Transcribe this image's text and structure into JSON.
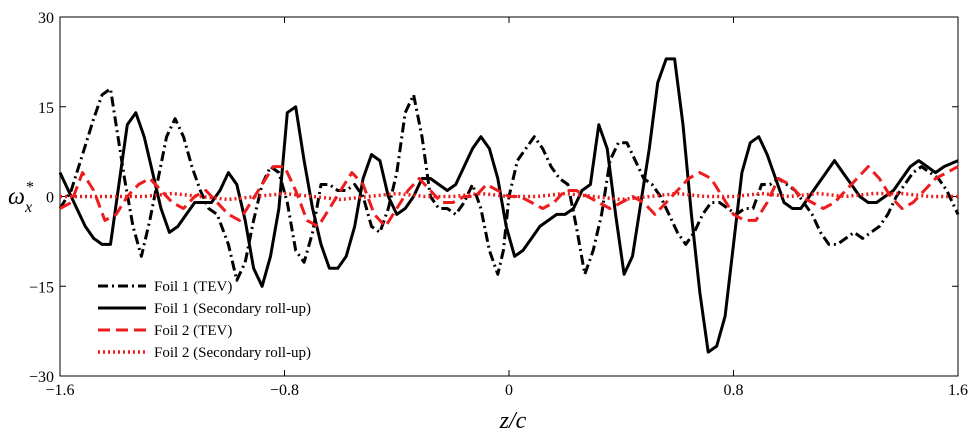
{
  "chart_data": {
    "type": "line",
    "title": "",
    "xlabel": "z/c",
    "ylabel_main": "ω",
    "ylabel_sub": "x",
    "ylabel_sup": "*",
    "xlim": [
      -1.6,
      1.6
    ],
    "ylim": [
      -30,
      30
    ],
    "xticks": [
      -1.6,
      -0.8,
      0,
      0.8,
      1.6
    ],
    "xtick_labels": [
      "−1.6",
      "−0.8",
      "0",
      "0.8",
      "1.6"
    ],
    "yticks": [
      -30,
      -15,
      0,
      15,
      30
    ],
    "ytick_labels": [
      "−30",
      "−15",
      "0",
      "15",
      "30"
    ],
    "grid": false,
    "legend_position": "bottom-left",
    "series": [
      {
        "name": "Foil 1 (TEV)",
        "color": "#000000",
        "style": "dashdot",
        "x": [
          -1.6,
          -1.56,
          -1.52,
          -1.48,
          -1.45,
          -1.42,
          -1.4,
          -1.37,
          -1.34,
          -1.31,
          -1.28,
          -1.25,
          -1.22,
          -1.19,
          -1.16,
          -1.13,
          -1.1,
          -1.07,
          -1.04,
          -1.0,
          -0.97,
          -0.94,
          -0.91,
          -0.88,
          -0.85,
          -0.82,
          -0.79,
          -0.76,
          -0.73,
          -0.7,
          -0.67,
          -0.64,
          -0.61,
          -0.58,
          -0.55,
          -0.52,
          -0.49,
          -0.46,
          -0.43,
          -0.4,
          -0.37,
          -0.34,
          -0.31,
          -0.28,
          -0.25,
          -0.22,
          -0.19,
          -0.16,
          -0.13,
          -0.1,
          -0.07,
          -0.04,
          -0.02,
          0.0,
          0.03,
          0.06,
          0.09,
          0.12,
          0.15,
          0.18,
          0.21,
          0.24,
          0.27,
          0.3,
          0.33,
          0.36,
          0.39,
          0.42,
          0.45,
          0.48,
          0.51,
          0.54,
          0.57,
          0.6,
          0.63,
          0.66,
          0.69,
          0.72,
          0.75,
          0.78,
          0.81,
          0.84,
          0.87,
          0.9,
          0.93,
          0.96,
          0.99,
          1.02,
          1.05,
          1.08,
          1.11,
          1.14,
          1.17,
          1.2,
          1.23,
          1.26,
          1.29,
          1.32,
          1.35,
          1.38,
          1.41,
          1.44,
          1.47,
          1.5,
          1.53,
          1.56,
          1.6
        ],
        "y": [
          -2,
          1,
          7,
          13,
          17,
          18,
          12,
          3,
          -5,
          -10,
          -4,
          3,
          10,
          13,
          10,
          5,
          1,
          -2,
          -3,
          -8,
          -14,
          -11,
          -4,
          2,
          5,
          4,
          -1,
          -9,
          -11,
          -6,
          2,
          2,
          1,
          1,
          2,
          0,
          -5,
          -6,
          -2,
          4,
          14,
          17,
          10,
          0,
          -2,
          -2,
          -3,
          -1,
          2,
          -2,
          -9,
          -13,
          -9,
          0,
          6,
          8,
          10,
          8,
          5,
          3,
          2,
          -5,
          -13,
          -9,
          -3,
          6,
          9,
          9,
          6,
          3,
          2,
          0,
          -3,
          -6,
          -8,
          -6,
          -3,
          -1,
          -1,
          -2,
          -3,
          -2,
          -2,
          2,
          2,
          3,
          2,
          1,
          -1,
          -3,
          -6,
          -8,
          -8,
          -7,
          -6,
          -7,
          -6,
          -5,
          -3,
          0,
          2,
          4,
          5,
          4,
          3,
          1,
          -3
        ],
        "x_override": true
      },
      {
        "name": "Foil 1 (Secondary roll-up)",
        "color": "#000000",
        "style": "solid",
        "x": [
          -1.6,
          -1.57,
          -1.54,
          -1.51,
          -1.48,
          -1.45,
          -1.42,
          -1.39,
          -1.36,
          -1.33,
          -1.3,
          -1.27,
          -1.24,
          -1.21,
          -1.18,
          -1.15,
          -1.12,
          -1.09,
          -1.06,
          -1.03,
          -1.0,
          -0.97,
          -0.94,
          -0.91,
          -0.88,
          -0.85,
          -0.82,
          -0.79,
          -0.76,
          -0.73,
          -0.7,
          -0.67,
          -0.64,
          -0.61,
          -0.58,
          -0.55,
          -0.52,
          -0.49,
          -0.46,
          -0.43,
          -0.4,
          -0.37,
          -0.34,
          -0.31,
          -0.28,
          -0.25,
          -0.22,
          -0.19,
          -0.16,
          -0.13,
          -0.1,
          -0.07,
          -0.04,
          -0.01,
          0.02,
          0.05,
          0.08,
          0.11,
          0.14,
          0.17,
          0.2,
          0.23,
          0.26,
          0.29,
          0.32,
          0.35,
          0.38,
          0.41,
          0.44,
          0.47,
          0.5,
          0.53,
          0.56,
          0.59,
          0.62,
          0.65,
          0.68,
          0.71,
          0.74,
          0.77,
          0.8,
          0.83,
          0.86,
          0.89,
          0.92,
          0.95,
          0.98,
          1.01,
          1.04,
          1.07,
          1.1,
          1.13,
          1.16,
          1.19,
          1.22,
          1.25,
          1.28,
          1.31,
          1.34,
          1.37,
          1.4,
          1.43,
          1.46,
          1.49,
          1.52,
          1.55,
          1.6
        ],
        "y": [
          4,
          1,
          -2,
          -5,
          -7,
          -8,
          -8,
          2,
          12,
          14,
          10,
          4,
          -2,
          -6,
          -5,
          -3,
          -1,
          -1,
          -1,
          1,
          4,
          2,
          -4,
          -12,
          -15,
          -10,
          -2,
          14,
          15,
          6,
          -2,
          -8,
          -12,
          -12,
          -10,
          -5,
          3,
          7,
          6,
          0,
          -3,
          -2,
          0,
          3,
          3,
          2,
          1,
          2,
          5,
          8,
          10,
          8,
          3,
          -5,
          -10,
          -9,
          -7,
          -5,
          -4,
          -3,
          -3,
          -2,
          1,
          2,
          12,
          8,
          -3,
          -13,
          -10,
          -1,
          8,
          19,
          23,
          23,
          12,
          -3,
          -16,
          -26,
          -25,
          -20,
          -8,
          4,
          9,
          10,
          7,
          3,
          -1,
          -2,
          -2,
          0,
          2,
          4,
          6,
          4,
          2,
          0,
          -1,
          -1,
          0,
          1,
          3,
          5,
          6,
          5,
          4,
          5,
          6
        ],
        "x_override": true
      },
      {
        "name": "Foil 2 (TEV)",
        "color": "#ee1c1c",
        "style": "dashed",
        "x": [
          -1.6,
          -1.56,
          -1.52,
          -1.48,
          -1.44,
          -1.4,
          -1.36,
          -1.32,
          -1.28,
          -1.24,
          -1.2,
          -1.16,
          -1.12,
          -1.08,
          -1.04,
          -1.0,
          -0.96,
          -0.92,
          -0.88,
          -0.84,
          -0.8,
          -0.76,
          -0.72,
          -0.68,
          -0.64,
          -0.6,
          -0.56,
          -0.52,
          -0.48,
          -0.44,
          -0.4,
          -0.36,
          -0.32,
          -0.28,
          -0.24,
          -0.2,
          -0.16,
          -0.12,
          -0.08,
          -0.04,
          0.0,
          0.04,
          0.08,
          0.12,
          0.16,
          0.2,
          0.24,
          0.28,
          0.32,
          0.36,
          0.4,
          0.44,
          0.48,
          0.52,
          0.56,
          0.6,
          0.64,
          0.68,
          0.72,
          0.76,
          0.8,
          0.84,
          0.88,
          0.92,
          0.96,
          1.0,
          1.04,
          1.08,
          1.12,
          1.16,
          1.2,
          1.24,
          1.28,
          1.32,
          1.36,
          1.4,
          1.44,
          1.48,
          1.52,
          1.56,
          1.6
        ],
        "y": [
          -2,
          -1,
          4,
          1,
          -4,
          -3,
          0,
          2,
          3,
          1,
          -1,
          -2,
          0,
          1,
          -1,
          -3,
          -4,
          -1,
          2,
          5,
          5,
          1,
          -4,
          -5,
          -2,
          1,
          4,
          2,
          -3,
          -5,
          -2,
          1,
          3,
          1,
          -1,
          -1,
          0,
          0,
          2,
          1,
          0,
          0,
          -1,
          -2,
          -1,
          1,
          1,
          0,
          -1,
          -2,
          -1,
          0,
          -1,
          -3,
          -1,
          1,
          3,
          4,
          3,
          0,
          -3,
          -4,
          -4,
          -1,
          3,
          2,
          0,
          -1,
          -2,
          -1,
          1,
          3,
          5,
          3,
          0,
          -2,
          -1,
          1,
          3,
          4,
          5
        ],
        "x_override": true
      },
      {
        "name": "Foil 2 (Secondary roll-up)",
        "color": "#ee1c1c",
        "style": "dotted",
        "x": [
          -1.6,
          -1.5,
          -1.4,
          -1.3,
          -1.2,
          -1.1,
          -1.0,
          -0.9,
          -0.8,
          -0.7,
          -0.6,
          -0.5,
          -0.4,
          -0.3,
          -0.2,
          -0.1,
          0.0,
          0.1,
          0.2,
          0.3,
          0.4,
          0.5,
          0.6,
          0.7,
          0.8,
          0.9,
          1.0,
          1.1,
          1.2,
          1.3,
          1.4,
          1.5,
          1.6
        ],
        "y": [
          0,
          0,
          0,
          0,
          0.5,
          0,
          -0.5,
          0,
          0.5,
          0,
          -0.5,
          0,
          0.5,
          0,
          0,
          0.5,
          0,
          0,
          0.5,
          0,
          -0.5,
          0,
          0.5,
          0,
          0,
          0.5,
          0,
          0.5,
          0,
          0.5,
          0.5,
          0,
          0
        ],
        "x_override": true
      }
    ]
  }
}
